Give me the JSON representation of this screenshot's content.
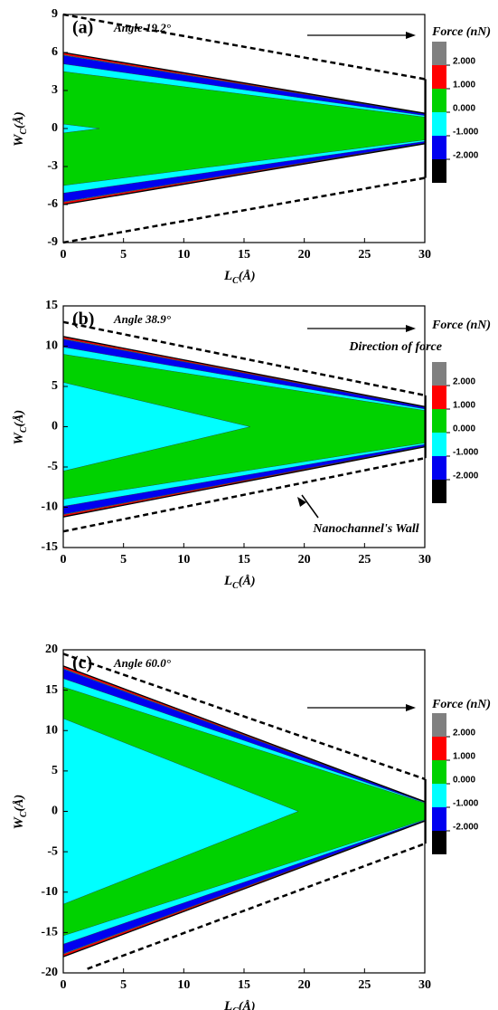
{
  "chart_data": [
    {
      "type": "contour",
      "panel_label": "(a)",
      "annotation": "Angle 19.2°",
      "xlabel": {
        "main": "L",
        "sub": "C",
        "unit": "(Å)"
      },
      "ylabel": {
        "main": "W",
        "sub": "C",
        "unit": "(Å)"
      },
      "xlim": [
        0,
        30
      ],
      "ylim": [
        -9,
        9
      ],
      "xticks": [
        0,
        5,
        10,
        15,
        20,
        25,
        30
      ],
      "yticks": [
        -9,
        -6,
        -3,
        0,
        3,
        6,
        9
      ],
      "colorbar_title": "Force (nN)",
      "levels": [
        {
          "value": 2,
          "label": "2.000"
        },
        {
          "value": 1,
          "label": "1.000"
        },
        {
          "value": 0,
          "label": "0.000"
        },
        {
          "value": -1,
          "label": "-1.000"
        },
        {
          "value": -2,
          "label": "-2.000"
        }
      ],
      "colors": [
        "#808080",
        "#ff0000",
        "#00d200",
        "#00ffff",
        "#0000f0",
        "#000000"
      ]
    },
    {
      "type": "contour",
      "panel_label": "(b)",
      "annotation": "Angle 38.9°",
      "xlabel": {
        "main": "L",
        "sub": "C",
        "unit": "(Å)"
      },
      "ylabel": {
        "main": "W",
        "sub": "C",
        "unit": "(Å)"
      },
      "xlim": [
        0,
        30
      ],
      "ylim": [
        -15,
        15
      ],
      "xticks": [
        0,
        5,
        10,
        15,
        20,
        25,
        30
      ],
      "yticks": [
        -15,
        -10,
        -5,
        0,
        5,
        10,
        15
      ],
      "colorbar_title": "Force (nN)",
      "levels": [
        {
          "value": 2,
          "label": "2.000"
        },
        {
          "value": 1,
          "label": "1.000"
        },
        {
          "value": 0,
          "label": "0.000"
        },
        {
          "value": -1,
          "label": "-1.000"
        },
        {
          "value": -2,
          "label": "-2.000"
        }
      ],
      "colors": [
        "#808080",
        "#ff0000",
        "#00d200",
        "#00ffff",
        "#0000f0",
        "#000000"
      ],
      "notes": [
        "Direction of force",
        "Nanochannel's Wall"
      ]
    },
    {
      "type": "contour",
      "panel_label": "(c)",
      "annotation": "Angle 60.0°",
      "xlabel": {
        "main": "L",
        "sub": "C",
        "unit": "(Å)"
      },
      "ylabel": {
        "main": "W",
        "sub": "C",
        "unit": "(Å)"
      },
      "xlim": [
        0,
        30
      ],
      "ylim": [
        -20,
        20
      ],
      "xticks": [
        0,
        5,
        10,
        15,
        20,
        25,
        30
      ],
      "yticks": [
        -20,
        -15,
        -10,
        -5,
        0,
        5,
        10,
        15,
        20
      ],
      "colorbar_title": "Force (nN)",
      "levels": [
        {
          "value": 2,
          "label": "2.000"
        },
        {
          "value": 1,
          "label": "1.000"
        },
        {
          "value": 0,
          "label": "0.000"
        },
        {
          "value": -1,
          "label": "-1.000"
        },
        {
          "value": -2,
          "label": "-2.000"
        }
      ],
      "colors": [
        "#808080",
        "#ff0000",
        "#00d200",
        "#00ffff",
        "#0000f0",
        "#000000"
      ]
    }
  ]
}
